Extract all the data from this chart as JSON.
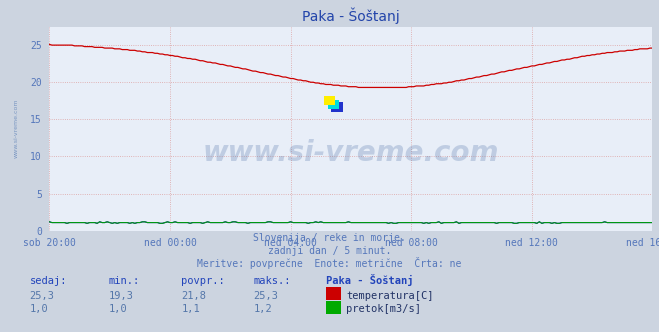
{
  "title": "Paka - Šoštanj",
  "background_color": "#ccd4e0",
  "plot_bg_color": "#e8eef8",
  "grid_color_h": "#d0b0b0",
  "grid_color_v": "#d0b0b0",
  "red_line_color": "#cc0000",
  "blue_line_color": "#0000aa",
  "green_line_color": "#00aa00",
  "x_labels": [
    "sob 20:00",
    "ned 00:00",
    "ned 04:00",
    "ned 08:00",
    "ned 12:00",
    "ned 16:00"
  ],
  "x_label_color": "#5577bb",
  "ylabel_color": "#5577bb",
  "title_color": "#2244aa",
  "ylim": [
    0,
    27.5
  ],
  "yticks": [
    0,
    5,
    10,
    15,
    20,
    25
  ],
  "subtitle_lines": [
    "Slovenija / reke in morje.",
    "zadnji dan / 5 minut.",
    "Meritve: povprečne  Enote: metrične  Črta: ne"
  ],
  "footer_headers": [
    "sedaj:",
    "min.:",
    "povpr.:",
    "maks.:",
    "Paka - Šoštanj"
  ],
  "footer_temp_vals": [
    "25,3",
    "19,3",
    "21,8",
    "25,3"
  ],
  "footer_temp_label": "temperatura[C]",
  "footer_flow_vals": [
    "1,0",
    "1,0",
    "1,1",
    "1,2"
  ],
  "footer_flow_label": "pretok[m3/s]",
  "watermark": "www.si-vreme.com",
  "left_label": "www.si-vreme.com",
  "n_points": 241,
  "x_tick_indices": [
    0,
    48,
    96,
    144,
    192,
    240
  ]
}
